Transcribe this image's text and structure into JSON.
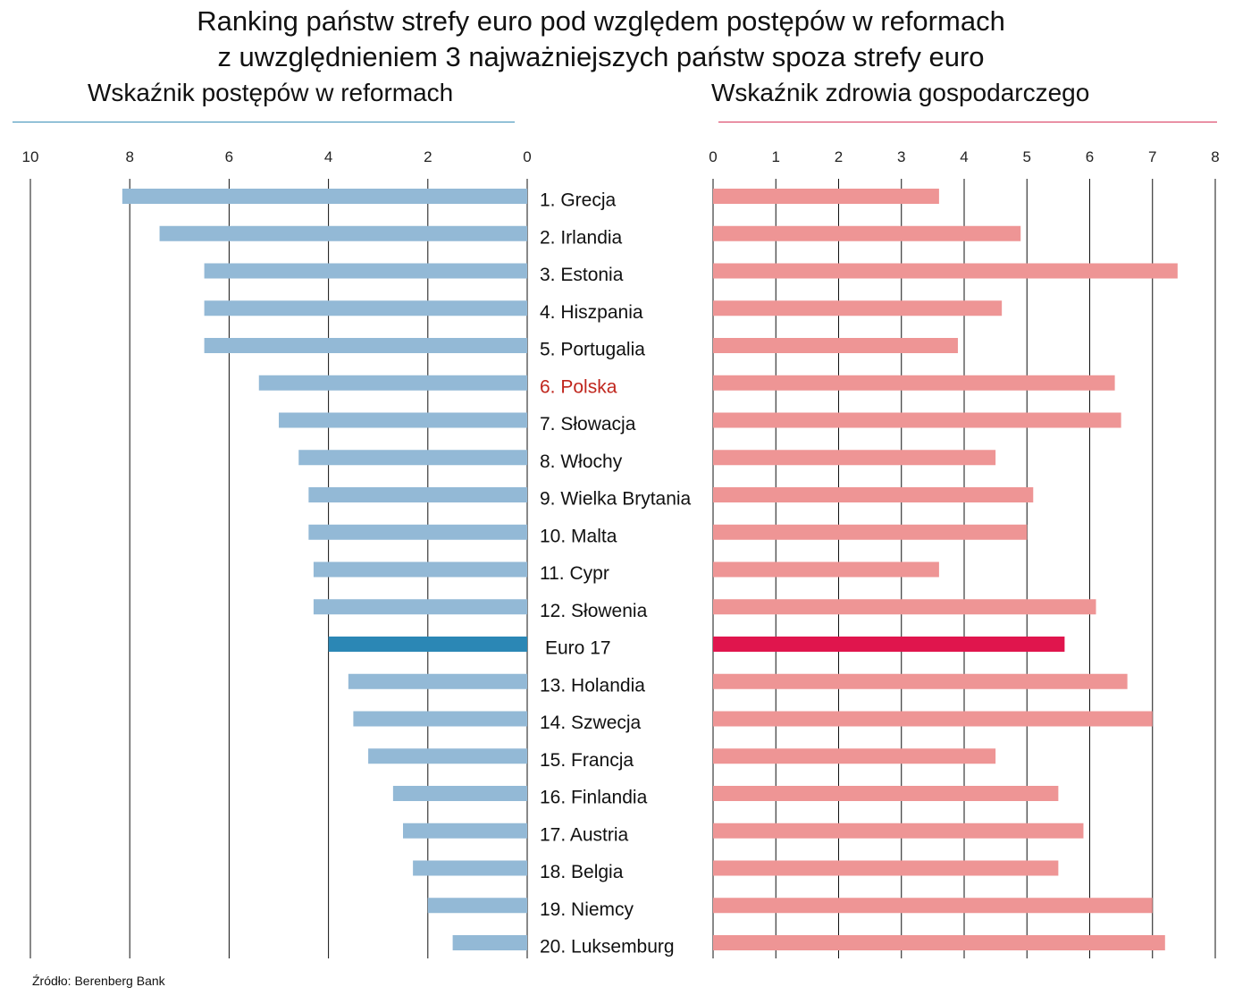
{
  "title_line1": "Ranking państw strefy euro pod względem postępów w reformach",
  "title_line2": "z uwzględnieniem 3 najważniejszych państw spoza strefy euro",
  "source": "Źródło: Berenberg Bank",
  "colors": {
    "left_bar": "#93b9d6",
    "left_highlight": "#2b87b5",
    "right_bar": "#ee9595",
    "right_highlight": "#e0154d",
    "highlight_label": "#c0261d",
    "grid": "#111111"
  },
  "chart_data": {
    "type": "bar",
    "categories": [
      "1. Grecja",
      "2. Irlandia",
      "3. Estonia",
      "4. Hiszpania",
      "5. Portugalia",
      "6. Polska",
      "7. Słowacja",
      "8. Włochy",
      "9. Wielka Brytania",
      "10. Malta",
      "11. Cypr",
      "12. Słowenia",
      "Euro 17",
      "13. Holandia",
      "14. Szwecja",
      "15. Francja",
      "16. Finlandia",
      "17. Austria",
      "18. Belgia",
      "19. Niemcy",
      "20. Luksemburg"
    ],
    "highlight_label_category": "6. Polska",
    "highlight_bar_category": "Euro 17",
    "panels": [
      {
        "title": "Wskaźnik postępów w reformach",
        "orientation": "horizontal-reversed",
        "xlim": [
          0,
          10
        ],
        "ticks": [
          10,
          8,
          6,
          4,
          2,
          0
        ],
        "grid": true,
        "values": [
          8.15,
          7.4,
          6.5,
          6.5,
          6.5,
          5.4,
          5.0,
          4.6,
          4.4,
          4.4,
          4.3,
          4.3,
          4.0,
          3.6,
          3.5,
          3.2,
          2.7,
          2.5,
          2.3,
          2.0,
          1.5
        ]
      },
      {
        "title": "Wskaźnik zdrowia gospodarczego",
        "orientation": "horizontal",
        "xlim": [
          0,
          8
        ],
        "ticks": [
          0,
          1,
          2,
          3,
          4,
          5,
          6,
          7,
          8
        ],
        "grid": true,
        "values": [
          3.6,
          4.9,
          7.4,
          4.6,
          3.9,
          6.4,
          6.5,
          4.5,
          5.1,
          5.0,
          3.6,
          6.1,
          5.6,
          6.6,
          7.0,
          4.5,
          5.5,
          5.9,
          5.5,
          7.0,
          7.2
        ]
      }
    ]
  }
}
